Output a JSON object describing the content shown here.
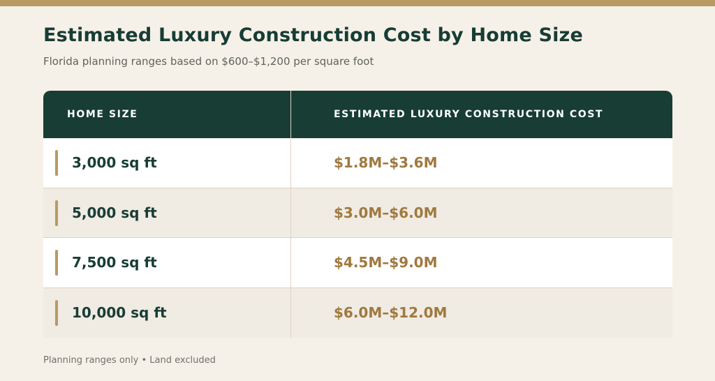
{
  "title": "Estimated Luxury Construction Cost by Home Size",
  "subtitle": "Florida planning ranges based on $600–$1,200 per square foot",
  "footer": "Planning ranges only • Land excluded",
  "colors": {
    "accent": "#b89a62",
    "header_bg": "#173d35",
    "cost_text": "#a0793f",
    "page_bg": "#f6f1e8"
  },
  "chart_data": {
    "type": "table",
    "title": "Estimated Luxury Construction Cost by Home Size",
    "subtitle": "Florida planning ranges based on $600–$1,200 per square foot",
    "columns": [
      "HOME SIZE",
      "ESTIMATED LUXURY CONSTRUCTION COST"
    ],
    "rows": [
      {
        "size": "3,000 sq ft",
        "cost": "$1.8M–$3.6M"
      },
      {
        "size": "5,000 sq ft",
        "cost": "$3.0M–$6.0M"
      },
      {
        "size": "7,500 sq ft",
        "cost": "$4.5M–$9.0M"
      },
      {
        "size": "10,000 sq ft",
        "cost": "$6.0M–$12.0M"
      }
    ],
    "footnote": "Planning ranges only • Land excluded"
  }
}
